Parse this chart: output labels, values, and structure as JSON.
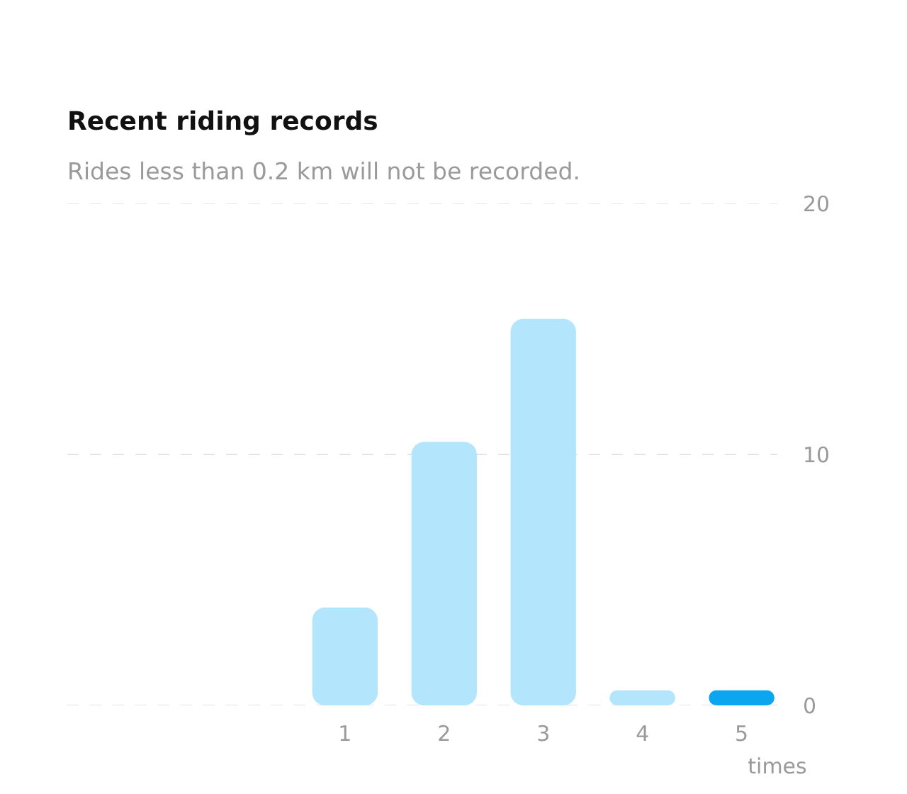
{
  "chart_data": {
    "type": "bar",
    "title": "Recent riding records",
    "subtitle": "Rides less than 0.2 km will not be recorded.",
    "xlabel": "times",
    "categories": [
      null,
      null,
      "1",
      "2",
      "3",
      "4",
      "5"
    ],
    "values": [
      null,
      null,
      3.9,
      10.5,
      15.4,
      0.6,
      0.6
    ],
    "colors": [
      "#b3e5fc",
      "#b3e5fc",
      "#b3e5fc",
      "#b3e5fc",
      "#b3e5fc",
      "#b3e5fc",
      "#0ba5f0"
    ],
    "ylim": [
      0,
      20
    ],
    "yticks": [
      0,
      10,
      20
    ],
    "grid": "y"
  }
}
